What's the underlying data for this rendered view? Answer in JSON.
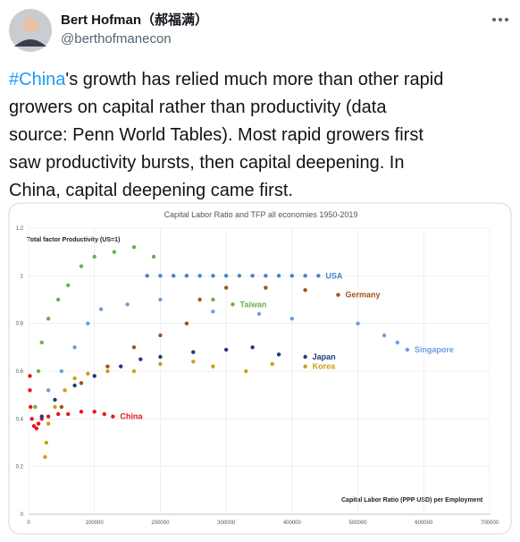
{
  "tweet": {
    "author": "Bert Hofman（郝福满）",
    "handle": "@berthofmanecon",
    "hashtag": "#China",
    "lines": [
      "'s growth has relied much more than other rapid",
      "growers on capital rather than productivity (data",
      "source: Penn World Tables).  Most rapid growers first",
      "saw productivity bursts, then capital deepening.  In",
      "China, capital deepening came first."
    ]
  },
  "chart_data": {
    "type": "scatter",
    "title": "Capital Labor Ratio and TFP all economies 1950-2019",
    "y_label": "Total factor Productivity (US=1)",
    "x_label": "Capital Labor Ratio (PPP USD) per Employment",
    "xlim": [
      0,
      700000
    ],
    "ylim": [
      0,
      1.2
    ],
    "xticks": [
      0,
      100000,
      200000,
      300000,
      400000,
      500000,
      600000,
      700000
    ],
    "yticks": [
      0,
      0.2,
      0.4,
      0.6,
      0.8,
      1,
      1.2
    ],
    "grid": true,
    "series": [
      {
        "name": "China",
        "color": "#e8141b",
        "x": [
          2000,
          2000,
          3000,
          5000,
          8000,
          12000,
          15000,
          20000,
          30000,
          45000,
          60000,
          80000,
          100000,
          115000,
          128000
        ],
        "values": [
          0.58,
          0.52,
          0.45,
          0.4,
          0.37,
          0.36,
          0.38,
          0.4,
          0.41,
          0.42,
          0.42,
          0.43,
          0.43,
          0.42,
          0.41
        ]
      },
      {
        "name": "Korea",
        "color": "#c9a018",
        "x": [
          25000,
          27000,
          30000,
          40000,
          55000,
          70000,
          90000,
          120000,
          160000,
          200000,
          250000,
          280000,
          330000,
          370000,
          420000
        ],
        "values": [
          0.24,
          0.3,
          0.38,
          0.45,
          0.52,
          0.57,
          0.59,
          0.6,
          0.6,
          0.63,
          0.64,
          0.62,
          0.6,
          0.63,
          0.62
        ]
      },
      {
        "name": "Japan",
        "color": "#203a7a",
        "x": [
          20000,
          40000,
          70000,
          100000,
          140000,
          170000,
          200000,
          250000,
          300000,
          340000,
          380000,
          420000
        ],
        "values": [
          0.41,
          0.48,
          0.54,
          0.58,
          0.62,
          0.65,
          0.66,
          0.68,
          0.69,
          0.7,
          0.67,
          0.66
        ]
      },
      {
        "name": "Taiwan",
        "color": "#6ab04c",
        "x": [
          10000,
          15000,
          20000,
          30000,
          45000,
          60000,
          80000,
          100000,
          130000,
          160000,
          190000,
          240000,
          280000,
          310000
        ],
        "values": [
          0.45,
          0.6,
          0.72,
          0.82,
          0.9,
          0.96,
          1.04,
          1.08,
          1.1,
          1.12,
          1.08,
          1.0,
          0.9,
          0.88
        ]
      },
      {
        "name": "USA",
        "color": "#4a7fd0",
        "x": [
          180000,
          200000,
          220000,
          240000,
          260000,
          280000,
          300000,
          320000,
          340000,
          360000,
          380000,
          400000,
          420000,
          440000
        ],
        "values": [
          1,
          1,
          1,
          1,
          1,
          1,
          1,
          1,
          1,
          1,
          1,
          1,
          1,
          1
        ]
      },
      {
        "name": "Germany",
        "color": "#a0521d",
        "x": [
          50000,
          80000,
          120000,
          160000,
          200000,
          240000,
          260000,
          300000,
          360000,
          420000,
          470000
        ],
        "values": [
          0.45,
          0.55,
          0.62,
          0.7,
          0.75,
          0.8,
          0.9,
          0.95,
          0.95,
          0.94,
          0.92
        ]
      },
      {
        "name": "Singapore",
        "color": "#6a9fe0",
        "x": [
          30000,
          50000,
          70000,
          90000,
          110000,
          150000,
          200000,
          280000,
          350000,
          400000,
          500000,
          540000,
          560000,
          575000
        ],
        "values": [
          0.52,
          0.6,
          0.7,
          0.8,
          0.86,
          0.88,
          0.9,
          0.85,
          0.84,
          0.82,
          0.8,
          0.75,
          0.72,
          0.69
        ]
      }
    ]
  }
}
